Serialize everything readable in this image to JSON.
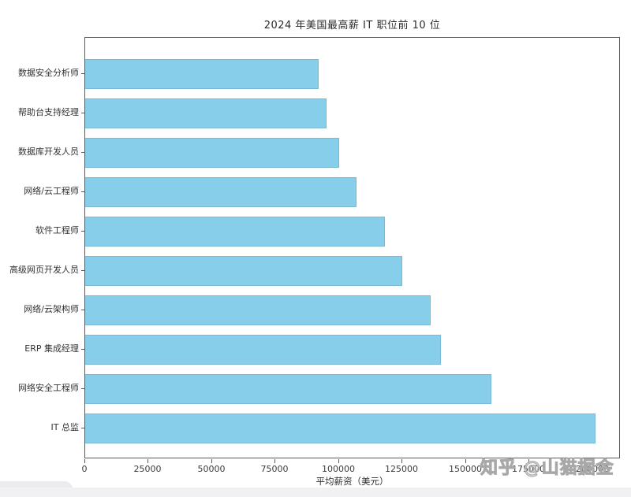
{
  "page": {
    "watermark": "知乎 @山猫掘金"
  },
  "chart_data": {
    "type": "bar",
    "orientation": "horizontal",
    "title": "2024 年美国最高薪 IT 职位前 10 位",
    "xlabel": "平均薪资（美元）",
    "ylabel": "",
    "categories": [
      "数据安全分析师",
      "帮助台支持经理",
      "数据库开发人员",
      "网络/云工程师",
      "软件工程师",
      "高级网页开发人员",
      "网络/云架构师",
      "ERP 集成经理",
      "网络安全工程师",
      "IT 总监"
    ],
    "values": [
      92000,
      95000,
      100000,
      107000,
      118000,
      125000,
      136000,
      140000,
      160000,
      201000
    ],
    "xlim": [
      0,
      211000
    ],
    "xticks": [
      0,
      25000,
      50000,
      75000,
      100000,
      125000,
      150000,
      175000,
      200000
    ],
    "bar_color": "#87ceeb",
    "grid": false,
    "legend": null
  }
}
